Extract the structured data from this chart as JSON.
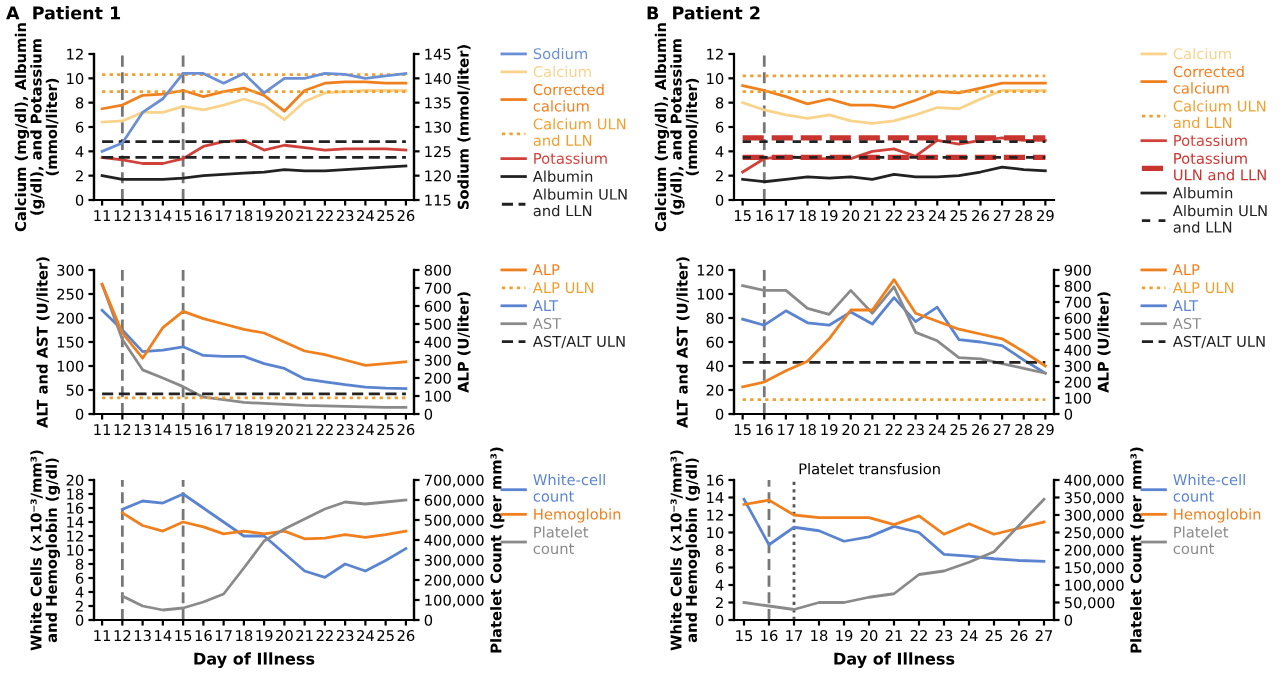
{
  "chart_data": [
    {
      "type": "line",
      "title": "A  Patient 1",
      "ylabel": "Calcium (mg/dl), Albumin (g/dl), and Potassium (mmol/liter)",
      "y2label": "Sodium (mmol/liter)",
      "x": [
        11,
        12,
        13,
        14,
        15,
        16,
        17,
        18,
        19,
        20,
        21,
        22,
        23,
        24,
        25,
        26
      ],
      "xlim": [
        10.6,
        26.4
      ],
      "xticks": [
        11,
        12,
        13,
        14,
        15,
        16,
        17,
        18,
        19,
        20,
        21,
        22,
        23,
        24,
        25,
        26
      ],
      "ylim": [
        0,
        12
      ],
      "yticks": [
        0,
        2,
        4,
        6,
        8,
        10,
        12
      ],
      "y2lim": [
        115,
        145
      ],
      "y2ticks": [
        115,
        120,
        125,
        130,
        135,
        140,
        145
      ],
      "legend": "right",
      "ref_lines": [
        {
          "axis": "x",
          "value": 12,
          "color": "#777777",
          "line_style": "dashed"
        },
        {
          "axis": "x",
          "value": 15,
          "color": "#777777",
          "line_style": "dashed"
        }
      ],
      "series": [
        {
          "name": "Sodium",
          "color": "#6b8fd4",
          "axis": "y2",
          "values": [
            125,
            126.7,
            133,
            135.8,
            141,
            141,
            139,
            141,
            137,
            140,
            140,
            141,
            140.8,
            140,
            140.5,
            141
          ]
        },
        {
          "name": "Calcium",
          "color": "#f9d38a",
          "values": [
            6.4,
            6.5,
            7.2,
            7.2,
            7.7,
            7.4,
            7.8,
            8.3,
            7.8,
            6.6,
            8.1,
            8.8,
            8.9,
            9.0,
            9.0,
            9.0
          ]
        },
        {
          "name": "Corrected calcium",
          "color": "#f07f1e",
          "values": [
            7.5,
            7.8,
            8.6,
            8.7,
            9.0,
            8.5,
            8.9,
            9.2,
            8.6,
            7.3,
            9.0,
            9.6,
            9.7,
            9.7,
            9.6,
            9.6
          ]
        },
        {
          "name": "Calcium ULN and LLN",
          "color": "#f0a030",
          "line_style": "dotted",
          "values": [
            10.3,
            10.3,
            10.3,
            10.3,
            10.3,
            10.3,
            10.3,
            10.3,
            10.3,
            10.3,
            10.3,
            10.3,
            10.3,
            10.3,
            10.3,
            10.3
          ]
        },
        {
          "color": "#f0a030",
          "line_style": "dotted",
          "values": [
            8.9,
            8.9,
            8.9,
            8.9,
            8.9,
            8.9,
            8.9,
            8.9,
            8.9,
            8.9,
            8.9,
            8.9,
            8.9,
            8.9,
            8.9,
            8.9
          ]
        },
        {
          "name": "Potassium",
          "color": "#d0413a",
          "values": [
            3.5,
            3.3,
            3.0,
            3.0,
            3.4,
            4.4,
            4.8,
            4.9,
            4.1,
            4.5,
            4.3,
            4.1,
            4.2,
            4.2,
            4.2,
            4.1
          ]
        },
        {
          "name": "Albumin",
          "color": "#222222",
          "values": [
            2.0,
            1.7,
            1.7,
            1.7,
            1.8,
            2.0,
            2.1,
            2.2,
            2.3,
            2.5,
            2.4,
            2.4,
            2.5,
            2.6,
            2.7,
            2.8
          ]
        },
        {
          "name": "Albumin ULN and LLN",
          "color": "#222222",
          "line_style": "dashed",
          "values": [
            4.8,
            4.8,
            4.8,
            4.8,
            4.8,
            4.8,
            4.8,
            4.8,
            4.8,
            4.8,
            4.8,
            4.8,
            4.8,
            4.8,
            4.8,
            4.8
          ]
        },
        {
          "color": "#222222",
          "line_style": "dashed",
          "values": [
            3.5,
            3.5,
            3.5,
            3.5,
            3.5,
            3.5,
            3.5,
            3.5,
            3.5,
            3.5,
            3.5,
            3.5,
            3.5,
            3.5,
            3.5,
            3.5
          ]
        }
      ]
    },
    {
      "type": "line",
      "title": "B  Patient 2",
      "ylabel": "Calcium (mg/dl), Albumin (g/dl), and Potassium (mmol/liter)",
      "x": [
        15,
        16,
        17,
        18,
        19,
        20,
        21,
        22,
        23,
        24,
        25,
        26,
        27,
        28,
        29
      ],
      "xlim": [
        14.6,
        29.4
      ],
      "xticks": [
        15,
        16,
        17,
        18,
        19,
        20,
        21,
        22,
        23,
        24,
        25,
        26,
        27,
        28,
        29
      ],
      "ylim": [
        0,
        12
      ],
      "yticks": [
        0,
        2,
        4,
        6,
        8,
        10,
        12
      ],
      "legend": "right",
      "ref_lines": [
        {
          "axis": "x",
          "value": 16,
          "color": "#777777",
          "line_style": "dashed"
        }
      ],
      "series": [
        {
          "name": "Calcium",
          "color": "#f9d38a",
          "values": [
            8.0,
            7.4,
            7.0,
            6.7,
            7.0,
            6.5,
            6.3,
            6.5,
            7.0,
            7.6,
            7.5,
            8.3,
            9.0,
            9.0,
            9.0
          ]
        },
        {
          "name": "Corrected calcium",
          "color": "#f07f1e",
          "values": [
            9.4,
            9.0,
            8.5,
            7.9,
            8.3,
            7.8,
            7.8,
            7.6,
            8.2,
            8.9,
            8.8,
            9.2,
            9.6,
            9.6,
            9.6
          ]
        },
        {
          "name": "Calcium ULN and LLN",
          "color": "#f0a030",
          "line_style": "dotted",
          "values": [
            10.2,
            10.2,
            10.2,
            10.2,
            10.2,
            10.2,
            10.2,
            10.2,
            10.2,
            10.2,
            10.2,
            10.2,
            10.2,
            10.2,
            10.2
          ]
        },
        {
          "color": "#f0a030",
          "line_style": "dotted",
          "values": [
            8.9,
            8.9,
            8.9,
            8.9,
            8.9,
            8.9,
            8.9,
            8.9,
            8.9,
            8.9,
            8.9,
            8.9,
            8.9,
            8.9,
            8.9
          ]
        },
        {
          "name": "Potassium",
          "color": "#d0413a",
          "values": [
            2.3,
            3.4,
            3.6,
            3.4,
            3.4,
            3.4,
            4.0,
            4.2,
            3.6,
            4.9,
            4.6,
            4.9,
            5.1,
            4.9,
            4.9
          ]
        },
        {
          "name": "Potassium ULN and LLN",
          "color": "#c9342f",
          "line_style": "dashed",
          "values": [
            5.1,
            5.1,
            5.1,
            5.1,
            5.1,
            5.1,
            5.1,
            5.1,
            5.1,
            5.1,
            5.1,
            5.1,
            5.1,
            5.1,
            5.1
          ]
        },
        {
          "color": "#c9342f",
          "line_style": "dashed",
          "values": [
            3.5,
            3.5,
            3.5,
            3.5,
            3.5,
            3.5,
            3.5,
            3.5,
            3.5,
            3.5,
            3.5,
            3.5,
            3.5,
            3.5,
            3.5
          ]
        },
        {
          "name": "Albumin",
          "color": "#222222",
          "values": [
            1.7,
            1.5,
            1.7,
            1.9,
            1.8,
            1.9,
            1.7,
            2.1,
            1.9,
            1.9,
            2.0,
            2.3,
            2.7,
            2.5,
            2.4
          ]
        },
        {
          "name": "Albumin ULN and LLN",
          "color": "#222222",
          "line_style": "dashed",
          "values": [
            4.8,
            4.8,
            4.8,
            4.8,
            4.8,
            4.8,
            4.8,
            4.8,
            4.8,
            4.8,
            4.8,
            4.8,
            4.8,
            4.8,
            4.8
          ]
        },
        {
          "color": "#222222",
          "line_style": "dashed",
          "values": [
            3.5,
            3.5,
            3.5,
            3.5,
            3.5,
            3.5,
            3.5,
            3.5,
            3.5,
            3.5,
            3.5,
            3.5,
            3.5,
            3.5,
            3.5
          ]
        }
      ]
    },
    {
      "type": "line",
      "ylabel": "ALT and AST (U/liter)",
      "y2label": "ALP (U/liter)",
      "x": [
        11,
        12,
        13,
        14,
        15,
        16,
        17,
        18,
        19,
        20,
        21,
        22,
        23,
        24,
        25,
        26
      ],
      "xlim": [
        10.6,
        26.4
      ],
      "xticks": [
        11,
        12,
        13,
        14,
        15,
        16,
        17,
        18,
        19,
        20,
        21,
        22,
        23,
        24,
        25,
        26
      ],
      "ylim": [
        0,
        300
      ],
      "yticks": [
        0,
        50,
        100,
        150,
        200,
        250,
        300
      ],
      "y2lim": [
        0,
        800
      ],
      "y2ticks": [
        0,
        100,
        200,
        300,
        400,
        500,
        600,
        700,
        800
      ],
      "legend": "right",
      "ref_lines": [
        {
          "axis": "x",
          "value": 12,
          "color": "#777777",
          "line_style": "dashed"
        },
        {
          "axis": "x",
          "value": 15,
          "color": "#777777",
          "line_style": "dashed"
        }
      ],
      "series": [
        {
          "name": "ALP",
          "color": "#f07f1e",
          "axis": "y2",
          "values": [
            720,
            450,
            310,
            480,
            570,
            530,
            500,
            470,
            450,
            400,
            350,
            330,
            300,
            270,
            280,
            290
          ]
        },
        {
          "name": "ALP ULN",
          "color": "#f0a030",
          "axis": "y2",
          "line_style": "dotted",
          "values": [
            90,
            90,
            90,
            90,
            90,
            90,
            90,
            90,
            90,
            90,
            90,
            90,
            90,
            90,
            90,
            90
          ]
        },
        {
          "name": "ALT",
          "color": "#5b84d0",
          "values": [
            216,
            175,
            130,
            133,
            140,
            122,
            120,
            120,
            105,
            95,
            73,
            67,
            61,
            56,
            54,
            53
          ]
        },
        {
          "name": "AST",
          "color": "#8a8a8a",
          "values": [
            270,
            155,
            92,
            75,
            57,
            35,
            30,
            24,
            22,
            20,
            18,
            17,
            16,
            15,
            14,
            14
          ]
        },
        {
          "name": "AST/ALT ULN",
          "color": "#222222",
          "line_style": "dashed",
          "values": [
            42,
            42,
            42,
            42,
            42,
            42,
            42,
            42,
            42,
            42,
            42,
            42,
            42,
            42,
            42,
            42
          ]
        }
      ]
    },
    {
      "type": "line",
      "ylabel": "ALT and AST (U/liter)",
      "y2label": "ALP (U/liter)",
      "x": [
        15,
        16,
        17,
        18,
        19,
        20,
        21,
        22,
        23,
        24,
        25,
        26,
        27,
        28,
        29
      ],
      "xlim": [
        14.6,
        29.4
      ],
      "xticks": [
        15,
        16,
        17,
        18,
        19,
        20,
        21,
        22,
        23,
        24,
        25,
        26,
        27,
        28,
        29
      ],
      "ylim": [
        0,
        120
      ],
      "yticks": [
        0,
        20,
        40,
        60,
        80,
        100,
        120
      ],
      "y2lim": [
        0,
        900
      ],
      "y2ticks": [
        0,
        100,
        200,
        300,
        400,
        500,
        600,
        700,
        800,
        900
      ],
      "legend": "right",
      "ref_lines": [
        {
          "axis": "x",
          "value": 16,
          "color": "#777777",
          "line_style": "dashed"
        }
      ],
      "series": [
        {
          "name": "ALP",
          "color": "#f07f1e",
          "axis": "y2",
          "values": [
            170,
            200,
            270,
            330,
            470,
            650,
            650,
            840,
            630,
            580,
            530,
            500,
            470,
            390,
            300
          ]
        },
        {
          "name": "ALP ULN",
          "color": "#f0a030",
          "axis": "y2",
          "line_style": "dotted",
          "values": [
            90,
            90,
            90,
            90,
            90,
            90,
            90,
            90,
            90,
            90,
            90,
            90,
            90,
            90,
            90
          ]
        },
        {
          "name": "ALT",
          "color": "#5b84d0",
          "values": [
            79,
            74,
            86,
            76,
            74,
            85,
            75,
            97,
            77,
            89,
            62,
            60,
            57,
            45,
            34
          ]
        },
        {
          "name": "AST",
          "color": "#8a8a8a",
          "values": [
            107,
            103,
            103,
            88,
            83,
            103,
            84,
            106,
            68,
            61,
            47,
            46,
            42,
            38,
            34
          ]
        },
        {
          "name": "AST/ALT ULN",
          "color": "#222222",
          "line_style": "dashed",
          "values": [
            43,
            43,
            43,
            43,
            43,
            43,
            43,
            43,
            43,
            43,
            43,
            43,
            43,
            43,
            43
          ]
        }
      ]
    },
    {
      "type": "line",
      "xlabel": "Day of Illness",
      "ylabel": "White Cells (×10⁻³/mm³) and Hemoglobin (g/dl)",
      "y2label": "Platelet Count (per mm³)",
      "x": [
        12,
        13,
        14,
        15,
        16,
        17,
        18,
        19,
        20,
        21,
        22,
        23,
        24,
        25,
        26
      ],
      "xlim": [
        10.6,
        26.4
      ],
      "xticks": [
        11,
        12,
        13,
        14,
        15,
        16,
        17,
        18,
        19,
        20,
        21,
        22,
        23,
        24,
        25,
        26
      ],
      "ylim": [
        0,
        20
      ],
      "yticks": [
        0,
        2,
        4,
        6,
        8,
        10,
        12,
        14,
        16,
        18,
        20
      ],
      "y2lim": [
        0,
        700000
      ],
      "y2ticks": [
        0,
        {
          "value": 100000,
          "label": "100,000"
        },
        {
          "value": 200000,
          "label": "200,000"
        },
        {
          "value": 300000,
          "label": "300,000"
        },
        {
          "value": 400000,
          "label": "400,000"
        },
        {
          "value": 500000,
          "label": "500,000"
        },
        {
          "value": 600000,
          "label": "600,000"
        },
        {
          "value": 700000,
          "label": "700,000"
        }
      ],
      "legend": "right",
      "ref_lines": [
        {
          "axis": "x",
          "value": 12,
          "color": "#777777",
          "line_style": "dashed"
        },
        {
          "axis": "x",
          "value": 15,
          "color": "#777777",
          "line_style": "dashed"
        }
      ],
      "series": [
        {
          "name": "White-cell count",
          "color": "#5b84d0",
          "values": [
            15.8,
            17,
            16.7,
            18,
            16,
            14,
            12,
            12,
            9.5,
            7,
            6.1,
            8,
            7,
            8.5,
            10.2
          ]
        },
        {
          "name": "Hemoglobin",
          "color": "#f07f1e",
          "values": [
            15.3,
            13.5,
            12.7,
            14.0,
            13.3,
            12.3,
            12.7,
            12.3,
            12.7,
            11.6,
            11.7,
            12.2,
            11.8,
            12.2,
            12.7
          ]
        },
        {
          "name": "Platelet count",
          "color": "#8a8a8a",
          "axis": "y2",
          "values": [
            120000,
            70000,
            50000,
            60000,
            90000,
            130000,
            260000,
            395000,
            455000,
            505000,
            555000,
            590000,
            580000,
            590000,
            600000
          ]
        }
      ]
    },
    {
      "type": "line",
      "xlabel": "Day of Illness",
      "ylabel": "White Cells (×10⁻³/mm³) and Hemoglobin (g/dl)",
      "y2label": "Platelet Count (per mm³)",
      "x": [
        15,
        16,
        17,
        18,
        19,
        20,
        21,
        22,
        23,
        24,
        25,
        26,
        27
      ],
      "xlim": [
        14.6,
        27.4
      ],
      "xticks": [
        15,
        16,
        17,
        18,
        19,
        20,
        21,
        22,
        23,
        24,
        25,
        26,
        27
      ],
      "ylim": [
        0,
        16
      ],
      "yticks": [
        0,
        2,
        4,
        6,
        8,
        10,
        12,
        14,
        16
      ],
      "y2lim": [
        0,
        400000
      ],
      "y2ticks": [
        0,
        {
          "value": 50000,
          "label": "50,000"
        },
        {
          "value": 100000,
          "label": "100,000"
        },
        {
          "value": 150000,
          "label": "150,000"
        },
        {
          "value": 200000,
          "label": "200,000"
        },
        {
          "value": 250000,
          "label": "250,000"
        },
        {
          "value": 300000,
          "label": "300,000"
        },
        {
          "value": 350000,
          "label": "350,000"
        },
        {
          "value": 400000,
          "label": "400,000"
        }
      ],
      "legend": "right",
      "ref_lines": [
        {
          "axis": "x",
          "value": 16,
          "color": "#777777",
          "line_style": "dashed"
        },
        {
          "axis": "x",
          "value": 17,
          "color": "#555555",
          "line_style": "dotted",
          "label": "Platelet transfusion"
        }
      ],
      "series": [
        {
          "name": "White-cell count",
          "color": "#5b84d0",
          "values": [
            13.8,
            8.6,
            10.6,
            10.2,
            9.0,
            9.5,
            10.7,
            10.0,
            7.5,
            7.3,
            7.0,
            6.8,
            6.7
          ]
        },
        {
          "name": "Hemoglobin",
          "color": "#f07f1e",
          "values": [
            13.2,
            13.7,
            12.0,
            11.7,
            11.7,
            11.7,
            10.9,
            11.9,
            9.8,
            11.0,
            9.8,
            10.5,
            11.2
          ]
        },
        {
          "name": "Platelet count",
          "color": "#8a8a8a",
          "axis": "y2",
          "values": [
            50000,
            40000,
            30000,
            50000,
            50000,
            65000,
            75000,
            130000,
            140000,
            165000,
            195000,
            270000,
            345000
          ]
        }
      ]
    }
  ]
}
